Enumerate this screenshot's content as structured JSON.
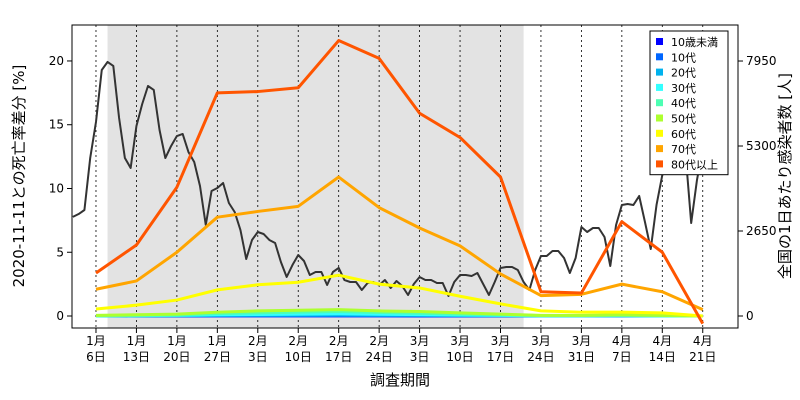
{
  "chart_data": {
    "type": "line",
    "x_label": "調査期間",
    "y_label": "2020-11-11との死亡率差分 [%]",
    "y2_label": "全国の1日あたり感染者数 [人]",
    "xlim": [
      1.85,
      117.1
    ],
    "ylim": [
      -0.94,
      22.82
    ],
    "y2lim": [
      -374,
      9073
    ],
    "xticks": [
      {
        "value": 6,
        "label": "1月\n6日"
      },
      {
        "value": 13,
        "label": "1月\n13日"
      },
      {
        "value": 20,
        "label": "1月\n20日"
      },
      {
        "value": 27,
        "label": "1月\n27日"
      },
      {
        "value": 34,
        "label": "2月\n3日"
      },
      {
        "value": 41,
        "label": "2月\n10日"
      },
      {
        "value": 48,
        "label": "2月\n17日"
      },
      {
        "value": 55,
        "label": "2月\n24日"
      },
      {
        "value": 62,
        "label": "3月\n3日"
      },
      {
        "value": 69,
        "label": "3月\n10日"
      },
      {
        "value": 76,
        "label": "3月\n17日"
      },
      {
        "value": 83,
        "label": "3月\n24日"
      },
      {
        "value": 90,
        "label": "3月\n31日"
      },
      {
        "value": 97,
        "label": "4月\n7日"
      },
      {
        "value": 104,
        "label": "4月\n14日"
      },
      {
        "value": 111,
        "label": "4月\n21日"
      }
    ],
    "yticks": [
      0,
      5,
      10,
      15,
      20
    ],
    "y2ticks": [
      0,
      2650,
      5300,
      7950
    ],
    "grid": true,
    "shaded_range": [
      8,
      80
    ],
    "legend": "top-right",
    "series": [
      {
        "axis": "y2",
        "color": "#333333",
        "x": [
          2,
          3,
          4,
          5,
          6,
          7,
          8,
          9,
          10,
          11,
          12,
          13,
          14,
          15,
          16,
          17,
          18,
          19,
          20,
          21,
          22,
          23,
          24,
          25,
          26,
          27,
          28,
          29,
          30,
          31,
          32,
          33,
          34,
          35,
          36,
          37,
          38,
          39,
          40,
          41,
          42,
          43,
          44,
          45,
          46,
          47,
          48,
          49,
          50,
          51,
          52,
          53,
          54,
          55,
          56,
          57,
          58,
          59,
          60,
          61,
          62,
          63,
          64,
          65,
          66,
          67,
          68,
          69,
          70,
          71,
          72,
          73,
          74,
          75,
          76,
          77,
          78,
          79,
          80,
          81,
          82,
          83,
          84,
          85,
          86,
          87,
          88,
          89,
          90,
          91,
          92,
          93,
          94,
          95,
          96,
          97,
          98,
          99,
          100,
          101,
          102,
          103,
          104,
          105,
          106,
          107,
          108,
          109,
          110,
          111
        ],
        "values": [
          3090,
          3180,
          3305,
          4926,
          6049,
          7670,
          7920,
          7795,
          6174,
          4926,
          4615,
          5924,
          6610,
          7171,
          7047,
          5799,
          4926,
          5301,
          5612,
          5675,
          5114,
          4802,
          4053,
          2837,
          3898,
          3991,
          4147,
          3523,
          3243,
          2681,
          1777,
          2370,
          2619,
          2557,
          2370,
          2276,
          1684,
          1216,
          1590,
          1902,
          1715,
          1278,
          1372,
          1372,
          967,
          1372,
          1497,
          1122,
          1060,
          1060,
          811,
          1029,
          1060,
          967,
          1122,
          873,
          1091,
          935,
          655,
          998,
          1216,
          1122,
          1122,
          1029,
          1029,
          624,
          1060,
          1278,
          1278,
          1247,
          1341,
          998,
          655,
          1060,
          1497,
          1528,
          1528,
          1434,
          1060,
          811,
          1434,
          1871,
          1871,
          2027,
          2027,
          1808,
          1341,
          1808,
          2775,
          2619,
          2744,
          2744,
          2463,
          1559,
          2837,
          3461,
          3492,
          3461,
          3742,
          2931,
          2089,
          3461,
          4396,
          4552,
          4677,
          5176,
          5114,
          2900,
          4240,
          5238
        ]
      },
      {
        "name": "10歳未満",
        "color": "#0000ff",
        "x": [
          6,
          13,
          20,
          27,
          34,
          41,
          48,
          55,
          62,
          69,
          76,
          83,
          90,
          97,
          104,
          111
        ],
        "values": [
          0,
          0,
          0,
          0.01,
          0.01,
          0.01,
          0.01,
          0.01,
          0,
          0,
          0,
          0,
          0,
          0,
          0,
          0
        ]
      },
      {
        "name": "10代",
        "color": "#0066ff",
        "x": [
          6,
          13,
          20,
          27,
          34,
          41,
          48,
          55,
          62,
          69,
          76,
          83,
          90,
          97,
          104,
          111
        ],
        "values": [
          0,
          0,
          0.01,
          0.02,
          0.02,
          0.02,
          0.03,
          0.02,
          0.02,
          0.01,
          0.01,
          0,
          0,
          0,
          0,
          0
        ]
      },
      {
        "name": "20代",
        "color": "#00b2ee",
        "x": [
          6,
          13,
          20,
          27,
          34,
          41,
          48,
          55,
          62,
          69,
          76,
          83,
          90,
          97,
          104,
          111
        ],
        "values": [
          0.01,
          0.02,
          0.03,
          0.05,
          0.06,
          0.07,
          0.08,
          0.06,
          0.05,
          0.04,
          0.03,
          0.01,
          0.01,
          0.02,
          0.01,
          0
        ]
      },
      {
        "name": "30代",
        "color": "#33ffff",
        "x": [
          6,
          13,
          20,
          27,
          34,
          41,
          48,
          55,
          62,
          69,
          76,
          83,
          90,
          97,
          104,
          111
        ],
        "values": [
          0.01,
          0.03,
          0.05,
          0.1,
          0.12,
          0.15,
          0.18,
          0.14,
          0.11,
          0.08,
          0.05,
          0.02,
          0.02,
          0.03,
          0.01,
          0
        ]
      },
      {
        "name": "40代",
        "color": "#4dffb3",
        "x": [
          6,
          13,
          20,
          27,
          34,
          41,
          48,
          55,
          62,
          69,
          76,
          83,
          90,
          97,
          104,
          111
        ],
        "values": [
          0.02,
          0.05,
          0.08,
          0.2,
          0.25,
          0.3,
          0.35,
          0.28,
          0.22,
          0.15,
          0.1,
          0.03,
          0.03,
          0.05,
          0.02,
          0
        ]
      },
      {
        "name": "50代",
        "color": "#adff2f",
        "x": [
          6,
          13,
          20,
          27,
          34,
          41,
          48,
          55,
          62,
          69,
          76,
          83,
          90,
          97,
          104,
          111
        ],
        "values": [
          0.05,
          0.1,
          0.15,
          0.3,
          0.4,
          0.45,
          0.5,
          0.4,
          0.35,
          0.25,
          0.15,
          0.05,
          0.05,
          0.1,
          0.05,
          0
        ]
      },
      {
        "name": "60代",
        "color": "#ffff00",
        "x": [
          6,
          13,
          20,
          27,
          34,
          41,
          48,
          55,
          62,
          69,
          76,
          83,
          90,
          97,
          104,
          111
        ],
        "values": [
          0.55,
          0.85,
          1.25,
          2.05,
          2.45,
          2.65,
          3.2,
          2.5,
          2.2,
          1.55,
          0.95,
          0.4,
          0.3,
          0.3,
          0.25,
          0
        ]
      },
      {
        "name": "70代",
        "color": "#ffa500",
        "x": [
          6,
          13,
          20,
          27,
          34,
          41,
          48,
          55,
          62,
          69,
          76,
          83,
          90,
          97,
          104,
          111
        ],
        "values": [
          2.1,
          2.75,
          5.0,
          7.75,
          8.2,
          8.6,
          10.9,
          8.5,
          6.9,
          5.5,
          3.3,
          1.6,
          1.7,
          2.5,
          1.9,
          0.5
        ]
      },
      {
        "name": "80代以上",
        "color": "#ff5500",
        "x": [
          6,
          13,
          20,
          27,
          34,
          41,
          48,
          55,
          62,
          69,
          76,
          83,
          90,
          97,
          104,
          111
        ],
        "values": [
          3.37,
          5.57,
          10.1,
          17.5,
          17.6,
          17.9,
          21.6,
          20.2,
          15.9,
          14.0,
          10.9,
          1.9,
          1.8,
          7.4,
          5.0,
          -0.6
        ]
      }
    ]
  }
}
